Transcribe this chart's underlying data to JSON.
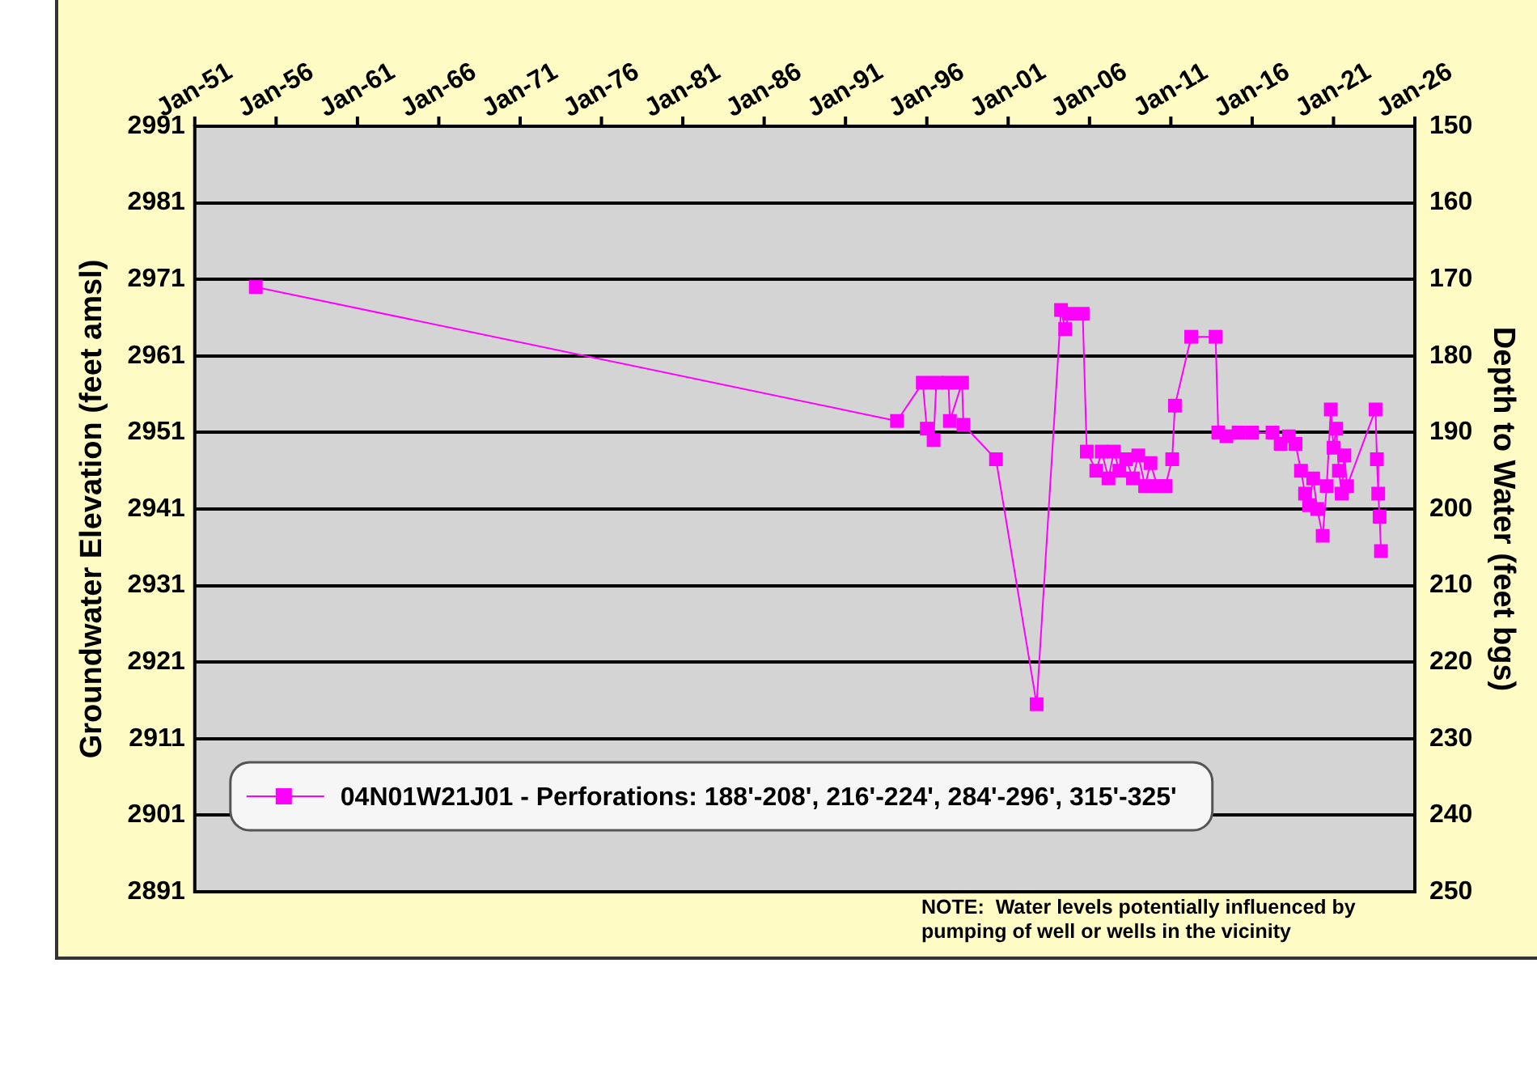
{
  "chart_data": {
    "type": "line",
    "xlabel": null,
    "ylabel": "Groundwater Elevation (feet amsl)",
    "y2label": "Depth to Water (feet bgs)",
    "x": [
      "1954-10",
      "1994-03",
      "1995-10",
      "1996-01",
      "1996-06",
      "1996-08",
      "1997-05",
      "1997-06",
      "1998-03",
      "1998-04",
      "2000-04",
      "2002-10",
      "2004-04",
      "2004-07",
      "2004-10",
      "2005-08",
      "2005-11",
      "2006-06",
      "2006-10",
      "2007-03",
      "2007-07",
      "2007-11",
      "2008-04",
      "2008-09",
      "2009-01",
      "2009-06",
      "2009-10",
      "2010-03",
      "2010-09",
      "2011-02",
      "2011-04",
      "2012-04",
      "2013-10",
      "2013-12",
      "2014-06",
      "2015-03",
      "2016-01",
      "2017-04",
      "2017-10",
      "2018-04",
      "2018-09",
      "2019-01",
      "2019-04",
      "2019-07",
      "2019-10",
      "2020-01",
      "2020-05",
      "2020-08",
      "2020-11",
      "2021-01",
      "2021-03",
      "2021-05",
      "2021-07",
      "2021-09",
      "2021-11",
      "2023-08",
      "2023-09",
      "2023-10",
      "2023-11",
      "2023-12"
    ],
    "series": [
      {
        "name": "04N01W21J01 - Perforations: 188'-208', 216'-224', 284'-296', 315'-325'",
        "color": "#ff00ff",
        "values": [
          2970,
          2952.5,
          2957.5,
          2951.5,
          2950,
          2957.5,
          2957.5,
          2952.5,
          2957.5,
          2952,
          2947.5,
          2915.5,
          2967,
          2964.5,
          2966.5,
          2966.5,
          2948.5,
          2946,
          2948.5,
          2945,
          2948.5,
          2946,
          2947.5,
          2945,
          2948,
          2944,
          2947,
          2944,
          2944,
          2947.5,
          2954.5,
          2963.5,
          2963.5,
          2951,
          2950.5,
          2951,
          2951,
          2951,
          2949.5,
          2950.5,
          2949.5,
          2946,
          2943,
          2941.5,
          2945,
          2941,
          2937.5,
          2944,
          2954,
          2949,
          2951.5,
          2946,
          2943,
          2948,
          2944,
          2954,
          2947.5,
          2943,
          2940,
          2935.5
        ]
      }
    ],
    "xlim": [
      "1951-01",
      "2026-01"
    ],
    "xticks": [
      {
        "value": "1951-01",
        "label": "Jan-51"
      },
      {
        "value": "1956-01",
        "label": "Jan-56"
      },
      {
        "value": "1961-01",
        "label": "Jan-61"
      },
      {
        "value": "1966-01",
        "label": "Jan-66"
      },
      {
        "value": "1971-01",
        "label": "Jan-71"
      },
      {
        "value": "1976-01",
        "label": "Jan-76"
      },
      {
        "value": "1981-01",
        "label": "Jan-81"
      },
      {
        "value": "1986-01",
        "label": "Jan-86"
      },
      {
        "value": "1991-01",
        "label": "Jan-91"
      },
      {
        "value": "1996-01",
        "label": "Jan-96"
      },
      {
        "value": "2001-01",
        "label": "Jan-01"
      },
      {
        "value": "2006-01",
        "label": "Jan-06"
      },
      {
        "value": "2011-01",
        "label": "Jan-11"
      },
      {
        "value": "2016-01",
        "label": "Jan-16"
      },
      {
        "value": "2021-01",
        "label": "Jan-21"
      },
      {
        "value": "2026-01",
        "label": "Jan-26"
      }
    ],
    "ylim": [
      2891,
      2991
    ],
    "yticks": [
      2891,
      2901,
      2911,
      2921,
      2931,
      2941,
      2951,
      2961,
      2971,
      2981,
      2991
    ],
    "y2lim": [
      250,
      150
    ],
    "y2ticks": [
      150,
      160,
      170,
      180,
      190,
      200,
      210,
      220,
      230,
      240,
      250
    ],
    "grid": "y",
    "legend": "bottom left",
    "marker": "square",
    "line_style": "solid",
    "annotations": [
      "NOTE:  Water levels potentially influenced by pumping of well or wells in the vicinity"
    ]
  }
}
